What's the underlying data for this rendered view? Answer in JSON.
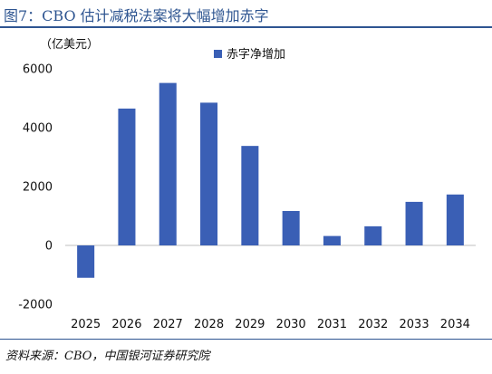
{
  "header": {
    "title": "图7：CBO 估计减税法案将大幅增加赤字"
  },
  "footer": {
    "source": "资料来源：CBO，中国银河证券研究院"
  },
  "chart_data": {
    "type": "bar",
    "title": "",
    "unit_label": "（亿美元）",
    "xlabel": "",
    "ylabel": "",
    "categories": [
      "2025",
      "2026",
      "2027",
      "2028",
      "2029",
      "2030",
      "2031",
      "2032",
      "2033",
      "2034"
    ],
    "series": [
      {
        "name": "赤字净增加",
        "values": [
          -1100,
          4650,
          5520,
          4850,
          3380,
          1170,
          320,
          650,
          1480,
          1730
        ],
        "color": "#3a5fb5"
      }
    ],
    "ylim": [
      -2000,
      6000
    ],
    "yticks": [
      "-2000",
      "0",
      "2000",
      "4000",
      "6000"
    ],
    "grid": false,
    "legend": "top-center"
  }
}
